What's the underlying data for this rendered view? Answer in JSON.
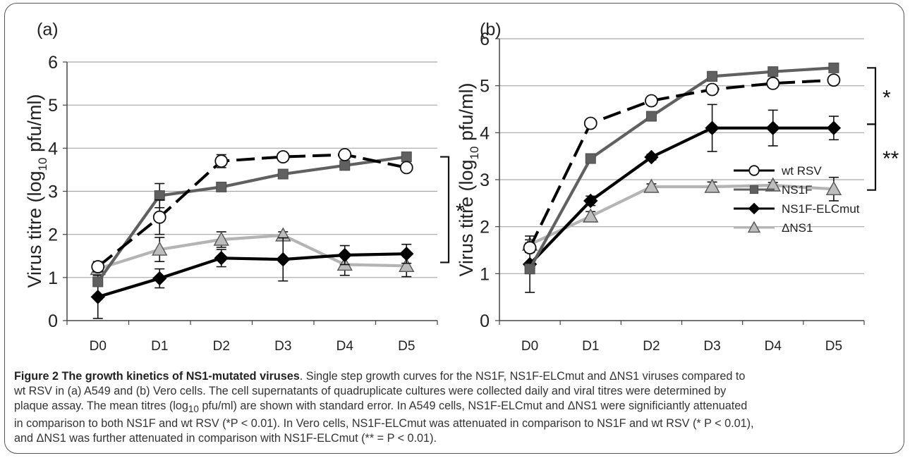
{
  "chart_data": [
    {
      "type": "line",
      "panel_label": "(a)",
      "ylabel": "Virus titre (log",
      "ylabel_sub": "10",
      "ylabel_tail": " pfu/ml)",
      "categories": [
        "D0",
        "D1",
        "D2",
        "D3",
        "D4",
        "D5"
      ],
      "ylim": [
        0,
        6
      ],
      "yticks": [
        "0",
        "1",
        "2",
        "3",
        "4",
        "5",
        "6"
      ],
      "grid": true,
      "series": [
        {
          "name": "wt RSV",
          "color": "#000000",
          "dash": true,
          "marker": "circle",
          "values": [
            1.25,
            2.4,
            3.7,
            3.8,
            3.85,
            3.55
          ],
          "errors": [
            0.12,
            0.4,
            0.15,
            0.08,
            0.06,
            0.05
          ]
        },
        {
          "name": "NS1F",
          "color": "#606060",
          "dash": false,
          "marker": "square",
          "values": [
            0.9,
            2.9,
            3.1,
            3.4,
            3.6,
            3.8
          ],
          "errors": [
            0.1,
            0.28,
            0.1,
            0.06,
            0.06,
            0.06
          ]
        },
        {
          "name": "NS1F-ELCmut",
          "color": "#000000",
          "dash": false,
          "marker": "diamond",
          "values": [
            0.55,
            0.98,
            1.45,
            1.42,
            1.52,
            1.55
          ],
          "errors": [
            0.5,
            0.22,
            0.2,
            0.5,
            0.22,
            0.22
          ]
        },
        {
          "name": "ΔNS1",
          "color": "#b4b4b4",
          "dash": false,
          "marker": "triangle",
          "values": [
            1.2,
            1.65,
            1.88,
            1.98,
            1.3,
            1.27
          ],
          "errors": [
            0.15,
            0.28,
            0.18,
            0.08,
            0.25,
            0.25
          ]
        }
      ],
      "brackets": [
        {
          "from": 3.8,
          "to": 1.35,
          "label": "*"
        }
      ]
    },
    {
      "type": "line",
      "panel_label": "(b)",
      "ylabel": "Virus titre (log",
      "ylabel_sub": "10",
      "ylabel_tail": " pfu/ml)",
      "categories": [
        "D0",
        "D1",
        "D2",
        "D3",
        "D4",
        "D5"
      ],
      "ylim": [
        0,
        6
      ],
      "yticks": [
        "0",
        "1",
        "2",
        "3",
        "4",
        "5",
        "6"
      ],
      "grid": true,
      "legend": "center-right",
      "series": [
        {
          "name": "wt RSV",
          "color": "#000000",
          "dash": true,
          "marker": "circle",
          "values": [
            1.55,
            4.2,
            4.68,
            4.92,
            5.05,
            5.12
          ],
          "errors": [
            0.1,
            0.06,
            0.06,
            0.06,
            0.06,
            0.06
          ]
        },
        {
          "name": "NS1F",
          "color": "#606060",
          "dash": false,
          "marker": "square",
          "values": [
            1.1,
            3.45,
            4.35,
            5.2,
            5.3,
            5.38
          ],
          "errors": [
            0.1,
            0.06,
            0.1,
            0.1,
            0.06,
            0.06
          ]
        },
        {
          "name": "NS1F-ELCmut",
          "color": "#000000",
          "dash": false,
          "marker": "diamond",
          "values": [
            1.2,
            2.55,
            3.48,
            4.1,
            4.1,
            4.1
          ],
          "errors": [
            0.6,
            0.1,
            0.06,
            0.5,
            0.38,
            0.25
          ]
        },
        {
          "name": "ΔNS1",
          "color": "#b4b4b4",
          "dash": false,
          "marker": "triangle",
          "values": [
            1.62,
            2.22,
            2.85,
            2.85,
            2.88,
            2.8
          ],
          "errors": [
            0.1,
            0.1,
            0.06,
            0.1,
            0.06,
            0.25
          ]
        }
      ],
      "brackets": [
        {
          "from": 5.38,
          "to": 4.18,
          "label": "*"
        },
        {
          "from": 4.18,
          "to": 2.78,
          "label": "**"
        }
      ]
    }
  ],
  "caption": {
    "title": "Figure 2 The growth kinetics of NS1-mutated viruses",
    "l1": ". Single step growth curves for the NS1F, NS1F-ELCmut and ΔNS1 viruses compared to",
    "l2": "wt RSV in (a) A549 and (b) Vero cells. The cell supernatants of quadruplicate cultures were collected daily and viral titres were determined by",
    "l3a": "plaque assay. The mean titres (log",
    "l3sub": "10",
    "l3b": " pfu/ml) are shown with standard error. In A549 cells, NS1F-ELCmut and ΔNS1 were significiantly attenuated",
    "l4": "in comparison to both NS1F and wt RSV (*P < 0.01). In Vero cells, NS1F-ELCmut was attenuated in comparison to NS1F and wt RSV (* P < 0.01),",
    "l5": "and ΔNS1 was further attenuated in comparison with NS1F-ELCmut (** = P < 0.01)."
  }
}
